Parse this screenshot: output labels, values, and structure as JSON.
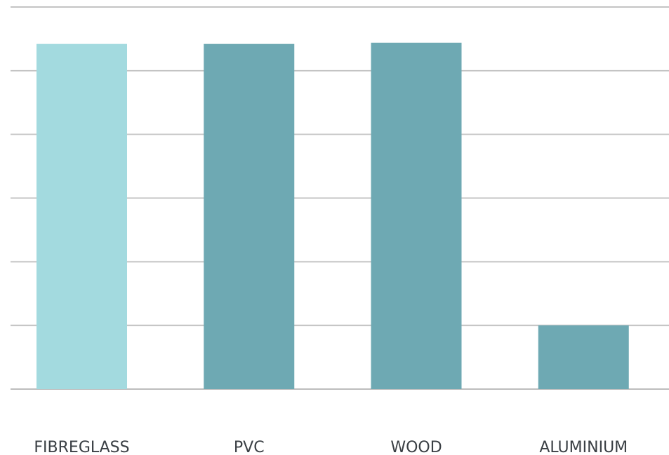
{
  "chart_data": {
    "type": "bar",
    "categories": [
      "FIBREGLASS",
      "PVC",
      "WOOD",
      "ALUMINIUM"
    ],
    "values": [
      5.42,
      5.42,
      5.44,
      1.0
    ],
    "ylim": [
      0,
      6
    ],
    "grid": true,
    "legend": "none",
    "colors": [
      "#a3dadf",
      "#6ea9b3",
      "#6ea9b3",
      "#6ea9b3"
    ]
  }
}
